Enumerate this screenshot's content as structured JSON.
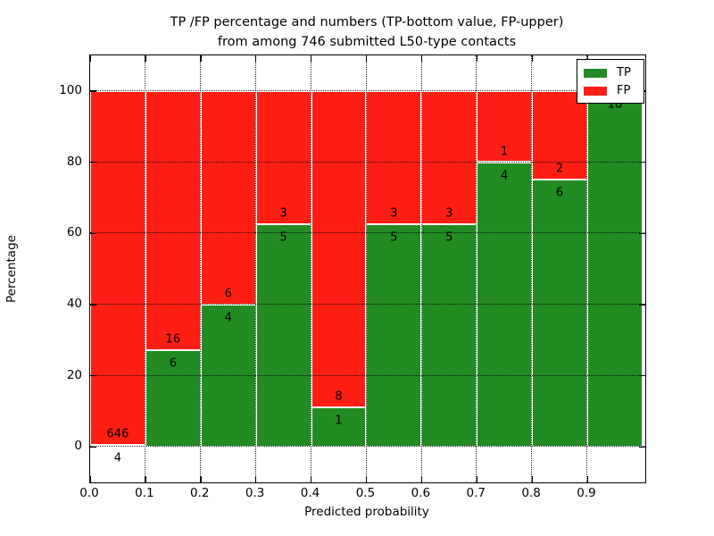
{
  "chart_data": {
    "type": "bar",
    "stacked": true,
    "title_line1": "TP /FP percentage and numbers (TP-bottom value, FP-upper)",
    "title_line2": "from among 746 submitted L50-type contacts",
    "xlabel": "Predicted probability",
    "ylabel": "Percentage",
    "total_contacts": 746,
    "xlim": [
      0,
      1.005
    ],
    "ylim": [
      -10,
      110
    ],
    "x_tick_values": [
      0.0,
      0.1,
      0.2,
      0.3,
      0.4,
      0.5,
      0.6,
      0.7,
      0.8,
      0.9
    ],
    "x_tick_labels": [
      "0.0",
      "0.1",
      "0.2",
      "0.3",
      "0.4",
      "0.5",
      "0.6",
      "0.7",
      "0.8",
      "0.9"
    ],
    "y_tick_values": [
      0,
      20,
      40,
      60,
      80,
      100
    ],
    "y_tick_labels": [
      "0",
      "20",
      "40",
      "60",
      "80",
      "100"
    ],
    "grid": "dotted",
    "bar_edge_color": "#ffffff",
    "bins": [
      {
        "x_start": 0.0,
        "x_end": 0.1,
        "tp": 4,
        "fp": 646
      },
      {
        "x_start": 0.1,
        "x_end": 0.2,
        "tp": 6,
        "fp": 16
      },
      {
        "x_start": 0.2,
        "x_end": 0.3,
        "tp": 4,
        "fp": 6
      },
      {
        "x_start": 0.3,
        "x_end": 0.4,
        "tp": 5,
        "fp": 3
      },
      {
        "x_start": 0.4,
        "x_end": 0.5,
        "tp": 1,
        "fp": 8
      },
      {
        "x_start": 0.5,
        "x_end": 0.6,
        "tp": 5,
        "fp": 3
      },
      {
        "x_start": 0.6,
        "x_end": 0.7,
        "tp": 5,
        "fp": 3
      },
      {
        "x_start": 0.7,
        "x_end": 0.8,
        "tp": 4,
        "fp": 1
      },
      {
        "x_start": 0.8,
        "x_end": 0.9,
        "tp": 6,
        "fp": 2
      },
      {
        "x_start": 0.9,
        "x_end": 1.0,
        "tp": 18,
        "fp": 0
      }
    ],
    "series": [
      {
        "name": "TP",
        "color": "#228B22"
      },
      {
        "name": "FP",
        "color": "#FF1E14"
      }
    ],
    "legend": {
      "position": "upper right",
      "entries": [
        "TP",
        "FP"
      ]
    }
  }
}
